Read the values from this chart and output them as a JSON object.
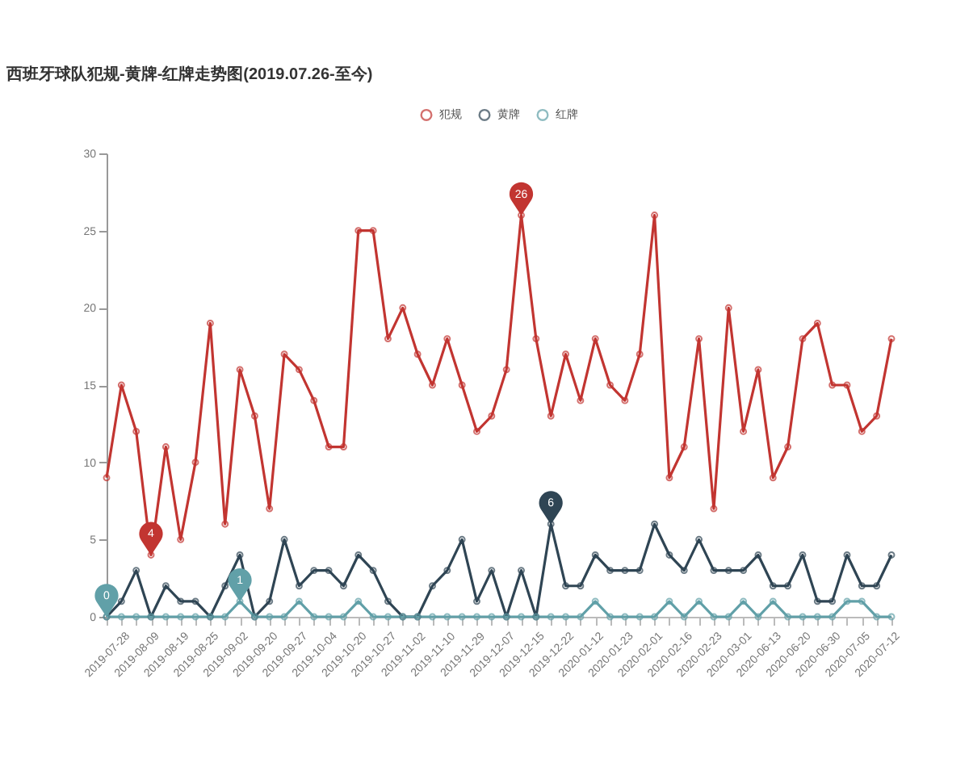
{
  "chart_data": {
    "type": "line",
    "title": "西班牙球队犯规-黄牌-红牌走势图(2019.07.26-至今)",
    "categories": [
      "2019-07-28",
      null,
      "2019-08-09",
      null,
      "2019-08-19",
      null,
      "2019-08-25",
      null,
      "2019-09-02",
      null,
      "2019-09-20",
      null,
      "2019-09-27",
      null,
      "2019-10-04",
      null,
      "2019-10-20",
      null,
      "2019-10-27",
      null,
      "2019-11-02",
      null,
      "2019-11-10",
      null,
      "2019-11-29",
      null,
      "2019-12-07",
      null,
      "2019-12-15",
      null,
      "2019-12-22",
      null,
      "2020-01-12",
      null,
      "2020-01-23",
      null,
      "2020-02-01",
      null,
      "2020-02-16",
      null,
      "2020-02-23",
      null,
      "2020-03-01",
      null,
      "2020-06-13",
      null,
      "2020-06-20",
      null,
      "2020-06-30",
      null,
      "2020-07-05",
      null,
      "2020-07-12",
      null
    ],
    "series": [
      {
        "name": "犯规",
        "color": "#c23531",
        "values": [
          9,
          15,
          12,
          4,
          11,
          5,
          10,
          19,
          6,
          16,
          13,
          7,
          17,
          16,
          14,
          11,
          11,
          25,
          25,
          18,
          20,
          17,
          15,
          18,
          15,
          12,
          13,
          16,
          26,
          18,
          13,
          17,
          14,
          18,
          15,
          14,
          17,
          26,
          9,
          11,
          18,
          7,
          20,
          12,
          16,
          9,
          11,
          18,
          19,
          15,
          15,
          12,
          13,
          18
        ]
      },
      {
        "name": "黄牌",
        "color": "#2f4554",
        "values": [
          0,
          1,
          3,
          0,
          2,
          1,
          1,
          0,
          2,
          4,
          0,
          1,
          5,
          2,
          3,
          3,
          2,
          4,
          3,
          1,
          0,
          0,
          2,
          3,
          5,
          1,
          3,
          0,
          3,
          0,
          6,
          2,
          2,
          4,
          3,
          3,
          3,
          6,
          4,
          3,
          5,
          3,
          3,
          3,
          4,
          2,
          2,
          4,
          1,
          1,
          4,
          2,
          2,
          4
        ]
      },
      {
        "name": "红牌",
        "color": "#61a0a8",
        "values": [
          0,
          0,
          0,
          0,
          0,
          0,
          0,
          0,
          0,
          1,
          0,
          0,
          0,
          1,
          0,
          0,
          0,
          1,
          0,
          0,
          0,
          0,
          0,
          0,
          0,
          0,
          0,
          0,
          0,
          0,
          0,
          0,
          0,
          1,
          0,
          0,
          0,
          0,
          1,
          0,
          1,
          0,
          0,
          1,
          0,
          1,
          0,
          0,
          0,
          0,
          1,
          1,
          0,
          0
        ]
      }
    ],
    "ylim": [
      0,
      30
    ],
    "yticks": [
      0,
      5,
      10,
      15,
      20,
      25,
      30
    ],
    "grid": false,
    "legend": "top",
    "marker": "circle",
    "line_style": "solid",
    "annotations": [
      {
        "text": "0",
        "y": 0
      },
      {
        "text": "1",
        "y": 1
      },
      {
        "text": "4",
        "y": 4
      },
      {
        "text": "26",
        "y": 26
      },
      {
        "text": "6",
        "y": 6
      }
    ]
  }
}
